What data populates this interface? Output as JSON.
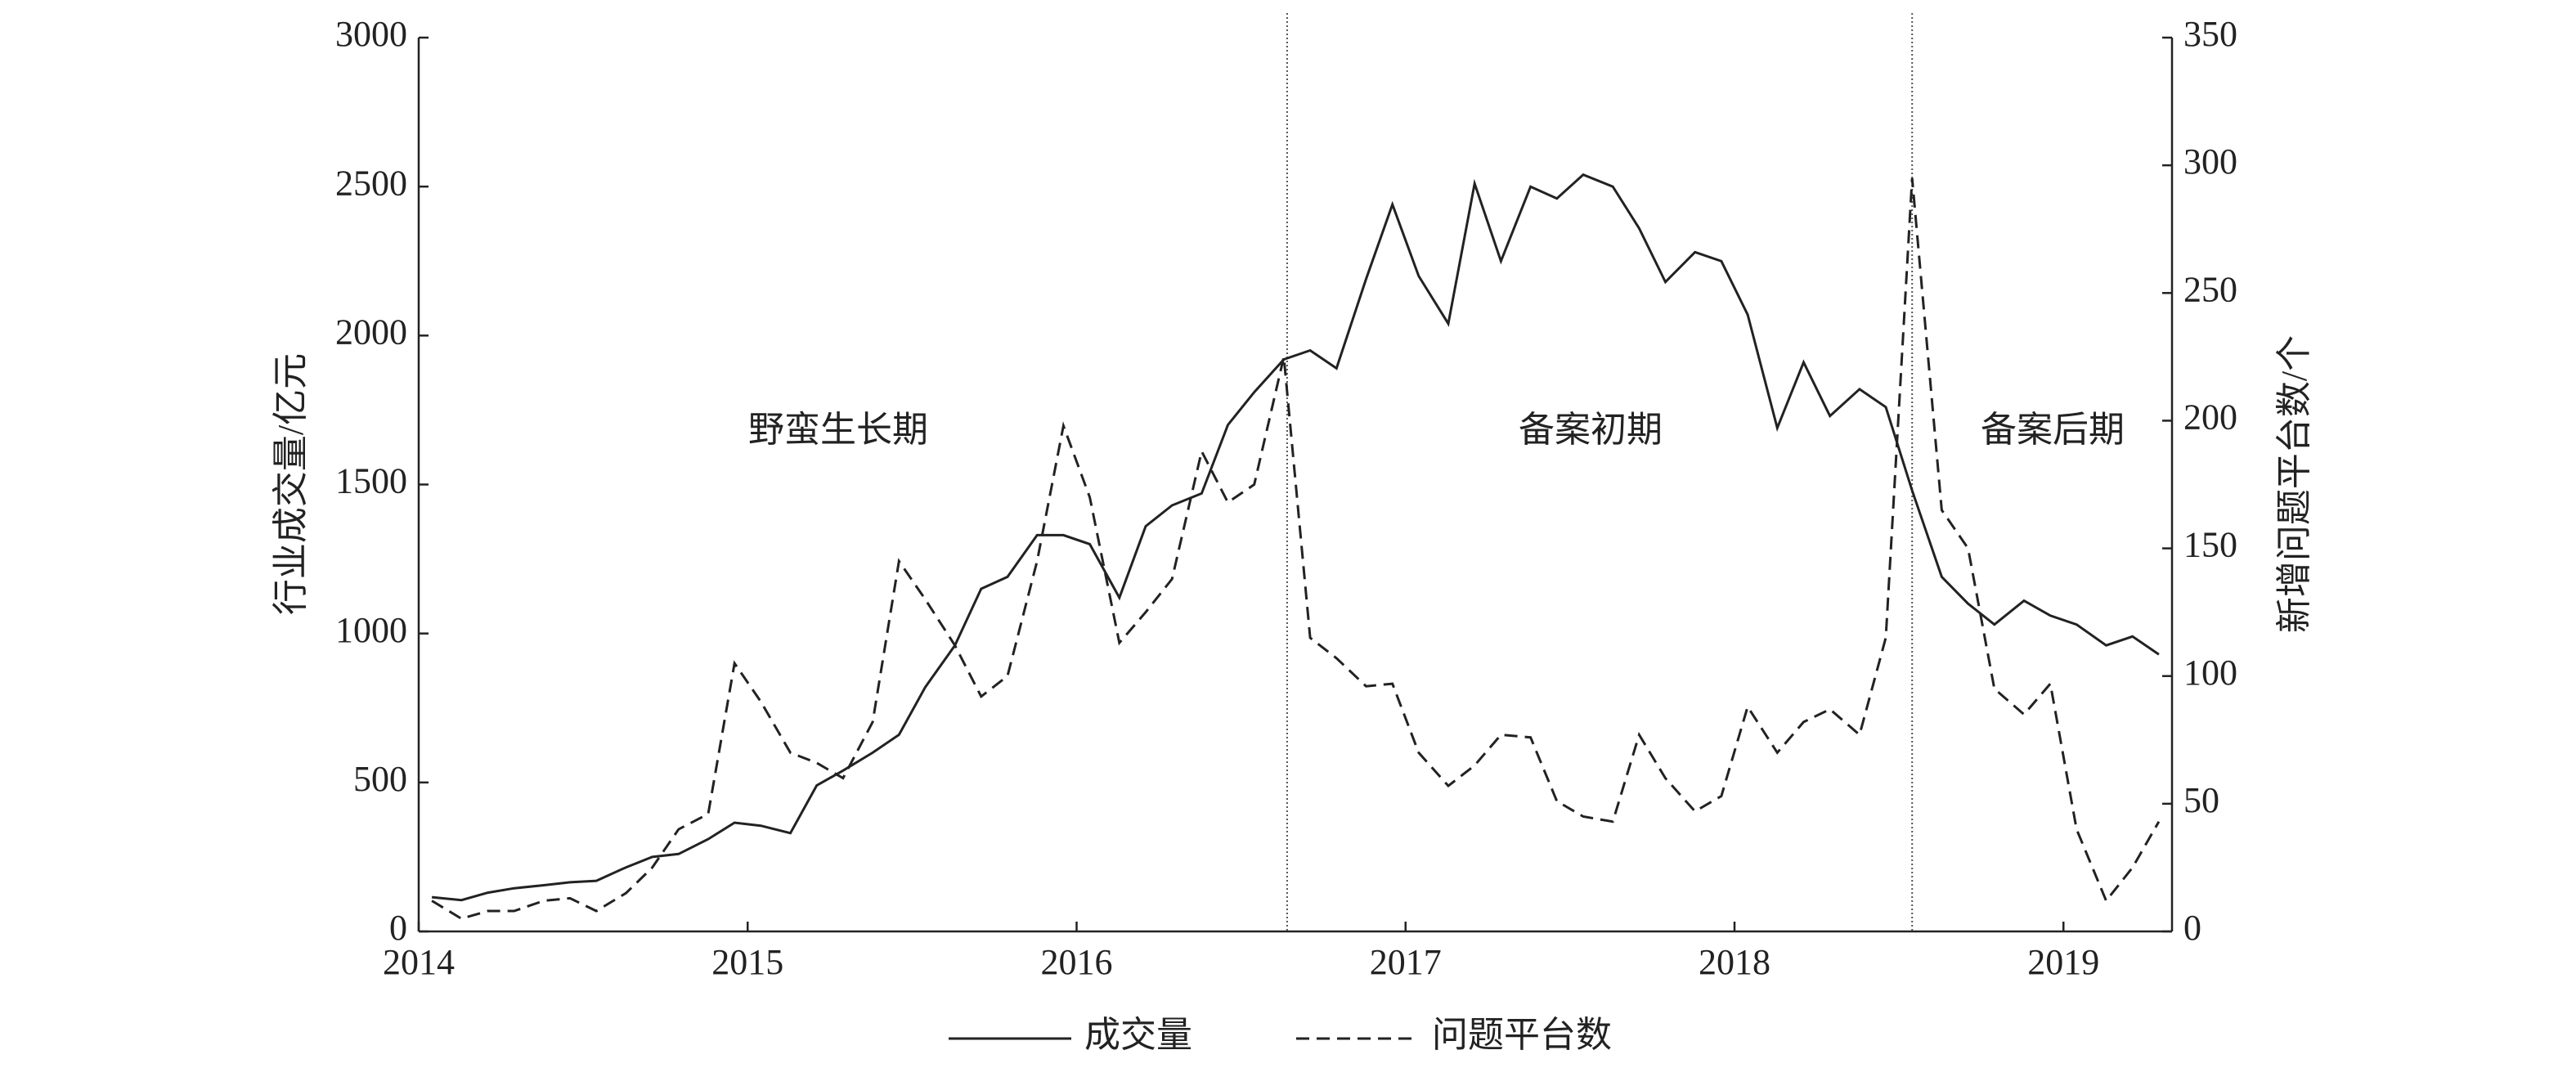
{
  "chart_data": {
    "type": "line",
    "y_label": "行业成交量/亿元",
    "y2_label": "新增问题平台数/个",
    "x": [
      2014.04,
      2014.13,
      2014.21,
      2014.29,
      2014.38,
      2014.46,
      2014.54,
      2014.63,
      2014.71,
      2014.79,
      2014.88,
      2014.96,
      2015.04,
      2015.13,
      2015.21,
      2015.29,
      2015.38,
      2015.46,
      2015.54,
      2015.63,
      2015.71,
      2015.79,
      2015.88,
      2015.96,
      2016.04,
      2016.13,
      2016.21,
      2016.29,
      2016.38,
      2016.46,
      2016.54,
      2016.63,
      2016.71,
      2016.79,
      2016.88,
      2016.96,
      2017.04,
      2017.13,
      2017.21,
      2017.29,
      2017.38,
      2017.46,
      2017.54,
      2017.63,
      2017.71,
      2017.79,
      2017.88,
      2017.96,
      2018.04,
      2018.13,
      2018.21,
      2018.29,
      2018.38,
      2018.46,
      2018.54,
      2018.63,
      2018.71,
      2018.79,
      2018.88,
      2018.96,
      2019.04,
      2019.13,
      2019.21,
      2019.29
    ],
    "series": [
      {
        "name": "成交量",
        "color": "#222222",
        "dash": "solid",
        "values": [
          115,
          105,
          130,
          145,
          155,
          165,
          170,
          215,
          250,
          260,
          310,
          365,
          355,
          330,
          490,
          540,
          600,
          660,
          820,
          960,
          1150,
          1190,
          1330,
          1330,
          1300,
          1120,
          1360,
          1430,
          1470,
          1700,
          1810,
          1920,
          1950,
          1890,
          2190,
          2440,
          2200,
          2040,
          2510,
          2250,
          2500,
          2460,
          2540,
          2500,
          2360,
          2180,
          2280,
          2250,
          2070,
          1690,
          1910,
          1730,
          1820,
          1760,
          1480,
          1190,
          1100,
          1030,
          1110,
          1060,
          1030,
          960,
          990,
          930
        ]
      },
      {
        "name": "问题平台数",
        "color": "#222222",
        "dash": "dashed",
        "axis": "y2",
        "values": [
          12,
          5,
          8,
          8,
          12,
          13,
          8,
          15,
          25,
          40,
          46,
          105,
          90,
          70,
          66,
          60,
          82,
          145,
          130,
          112,
          92,
          100,
          145,
          198,
          170,
          113,
          125,
          138,
          188,
          168,
          175,
          225,
          115,
          107,
          96,
          97,
          70,
          57,
          65,
          77,
          76,
          51,
          45,
          43,
          77,
          60,
          47,
          53,
          88,
          70,
          82,
          87,
          77,
          115,
          295,
          165,
          150,
          95,
          85,
          97,
          40,
          12,
          25,
          43
        ]
      }
    ],
    "vlines": [
      2016.64,
      2018.54
    ],
    "annotations": [
      "野蛮生长期",
      "备案初期",
      "备案后期"
    ],
    "xlim": [
      2014,
      2019.33
    ],
    "xticks": [
      2014,
      2015,
      2016,
      2017,
      2018,
      2019
    ],
    "ylim": [
      0,
      3000
    ],
    "yticks": [
      0,
      500,
      1000,
      1500,
      2000,
      2500,
      3000
    ],
    "y2lim": [
      0,
      350
    ],
    "y2ticks": [
      0,
      50,
      100,
      150,
      200,
      250,
      300,
      350
    ],
    "grid": false,
    "legend": "bottom"
  }
}
